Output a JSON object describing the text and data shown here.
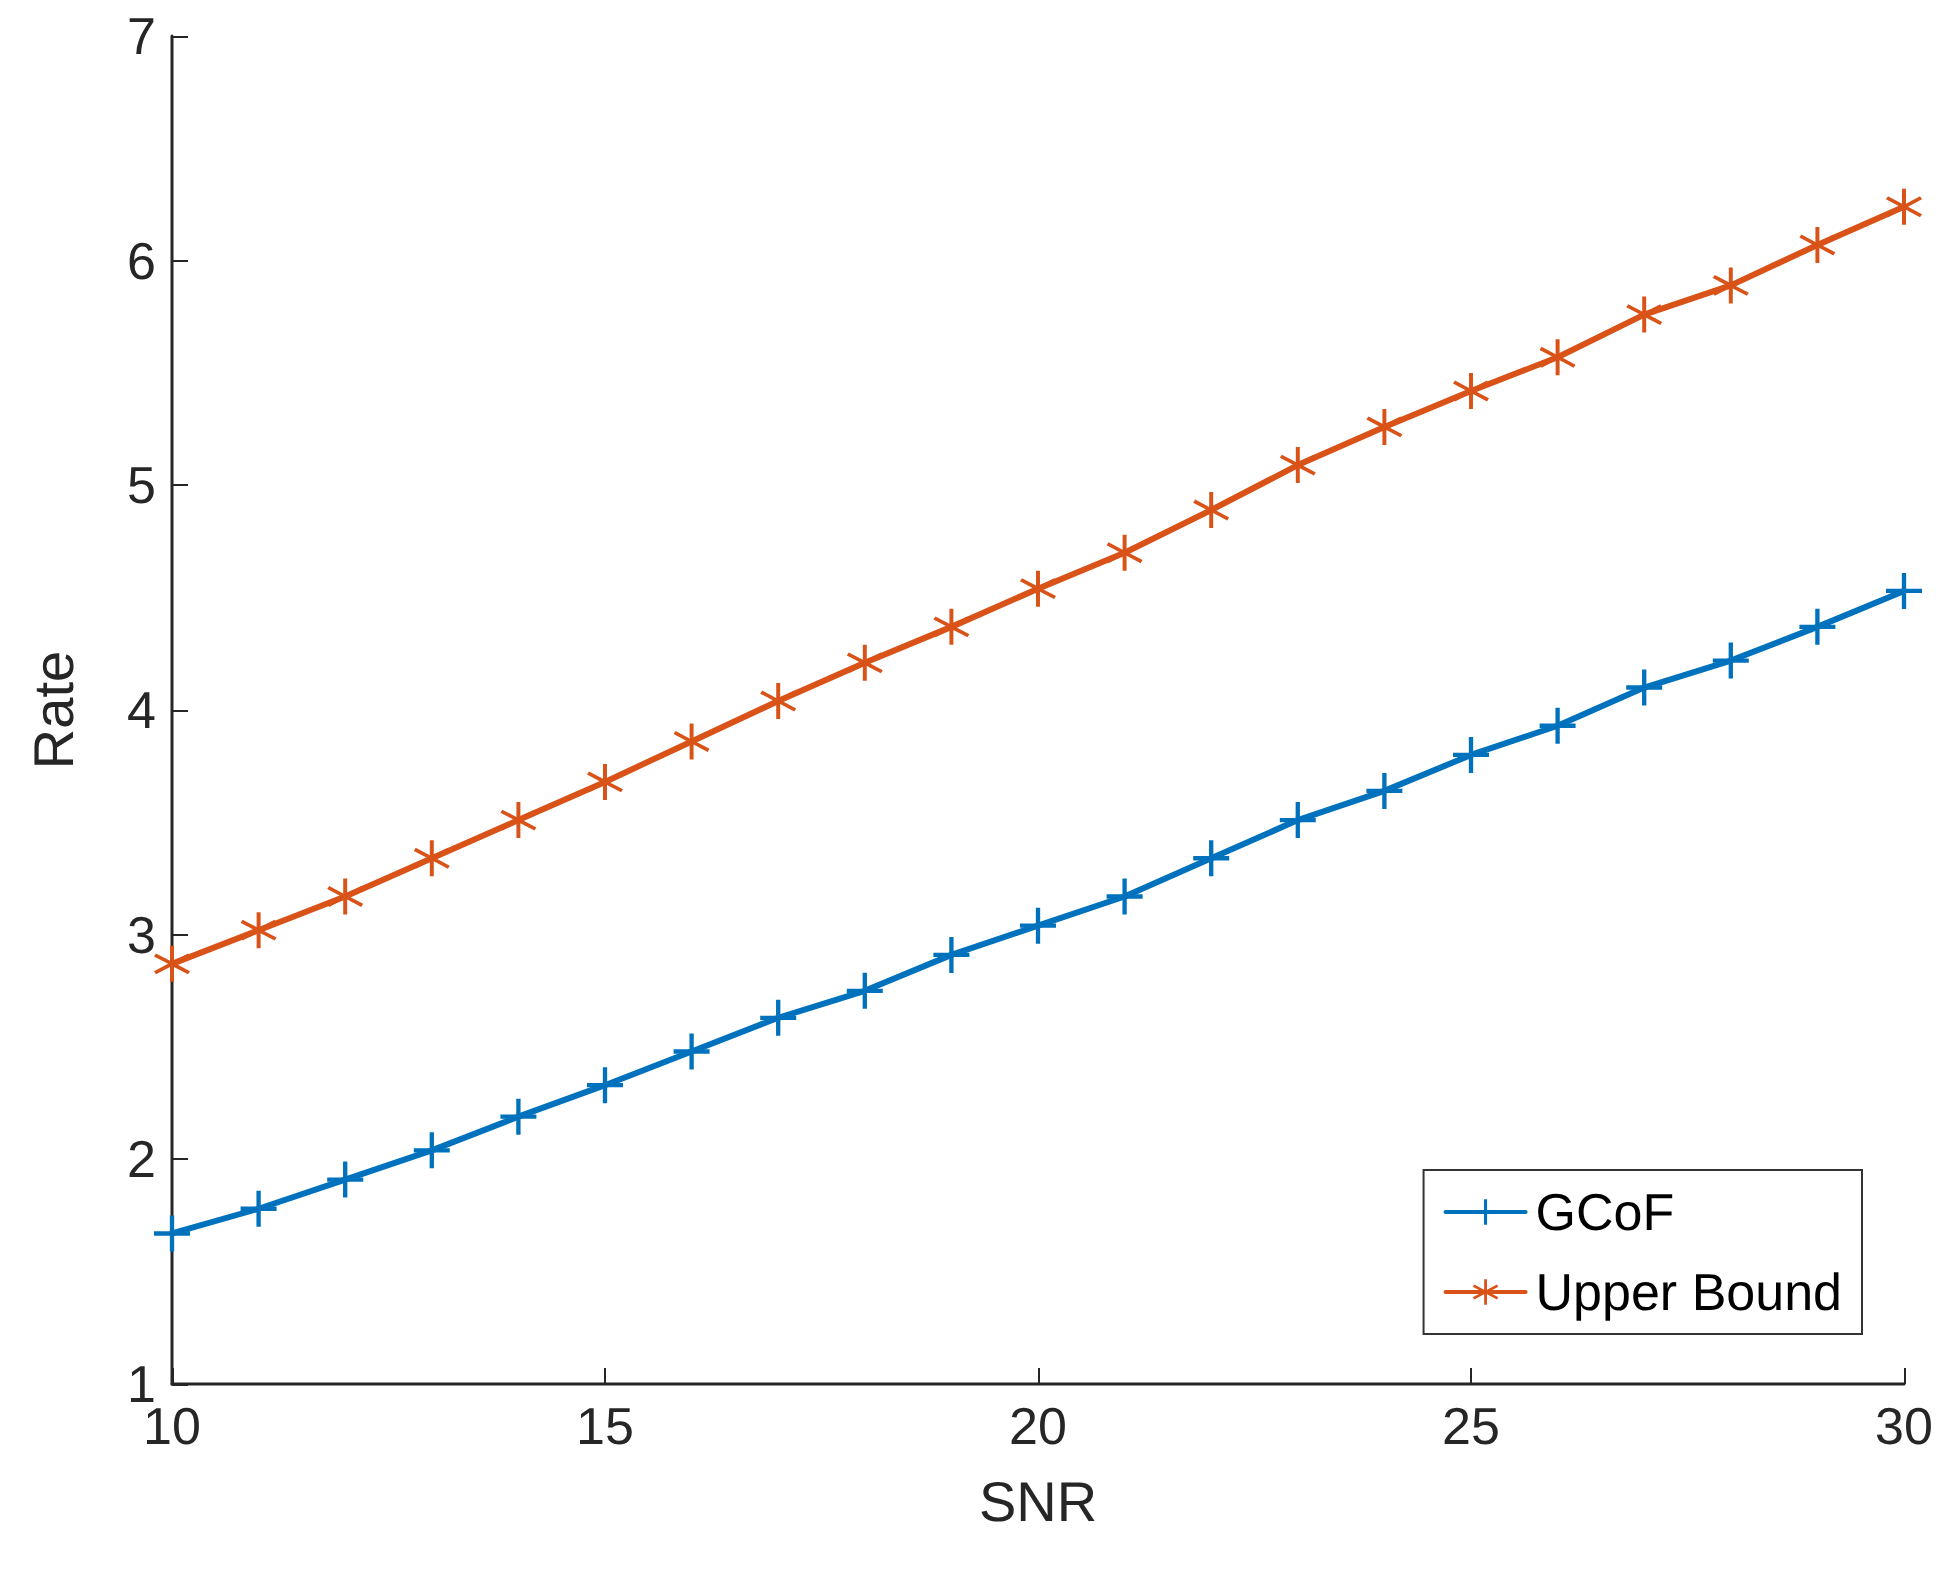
{
  "chart_data": {
    "type": "line",
    "xlabel": "SNR",
    "ylabel": "Rate",
    "x": [
      10,
      11,
      12,
      13,
      14,
      15,
      16,
      17,
      18,
      19,
      20,
      21,
      22,
      23,
      24,
      25,
      26,
      27,
      28,
      29,
      30
    ],
    "series": [
      {
        "name": "GCoF",
        "color": "#0072bd",
        "marker": "cross",
        "values": [
          1.67,
          1.78,
          1.91,
          2.04,
          2.19,
          2.33,
          2.48,
          2.63,
          2.75,
          2.91,
          3.04,
          3.17,
          3.34,
          3.51,
          3.64,
          3.8,
          3.93,
          4.1,
          4.22,
          4.37,
          4.53
        ]
      },
      {
        "name": "Upper Bound",
        "color": "#d95319",
        "marker": "star",
        "values": [
          2.87,
          3.02,
          3.17,
          3.34,
          3.51,
          3.68,
          3.86,
          4.04,
          4.21,
          4.37,
          4.54,
          4.7,
          4.89,
          5.09,
          5.26,
          5.42,
          5.57,
          5.76,
          5.89,
          6.07,
          6.24
        ]
      }
    ],
    "xlim": [
      10,
      30
    ],
    "xticks": [
      10,
      15,
      20,
      25,
      30
    ],
    "ylim": [
      1,
      7
    ],
    "yticks": [
      1,
      2,
      3,
      4,
      5,
      6,
      7
    ],
    "legend": "bottom right",
    "grid": false,
    "line_style": "solid"
  }
}
